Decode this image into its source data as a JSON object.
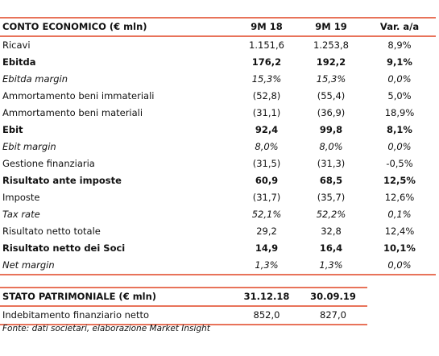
{
  "income_table": {
    "header": [
      "CONTO ECONOMICO (€ mln)",
      "9M 18",
      "9M 19",
      "Var. a/a"
    ],
    "rows": [
      [
        "Ricavi",
        "1.151,6",
        "1.253,8",
        "8,9%"
      ],
      [
        "Ebitda",
        "176,2",
        "192,2",
        "9,1%"
      ],
      [
        "Ebitda margin",
        "15,3%",
        "15,3%",
        "0,0%"
      ],
      [
        "Ammortamento beni immateriali",
        "(52,8)",
        "(55,4)",
        "5,0%"
      ],
      [
        "Ammortamento beni materiali",
        "(31,1)",
        "(36,9)",
        "18,9%"
      ],
      [
        "Ebit",
        "92,4",
        "99,8",
        "8,1%"
      ],
      [
        "Ebit margin",
        "8,0%",
        "8,0%",
        "0,0%"
      ],
      [
        "Gestione finanziaria",
        "(31,5)",
        "(31,3)",
        "-0,5%"
      ],
      [
        "Risultato ante imposte",
        "60,9",
        "68,5",
        "12,5%"
      ],
      [
        "Imposte",
        "(31,7)",
        "(35,7)",
        "12,6%"
      ],
      [
        "Tax rate",
        "52,1%",
        "52,2%",
        "0,1%"
      ],
      [
        "Risultato netto totale",
        "29,2",
        "32,8",
        "12,4%"
      ],
      [
        "Risultato netto dei Soci",
        "14,9",
        "16,4",
        "10,1%"
      ],
      [
        "Net margin",
        "1,3%",
        "1,3%",
        "0,0%"
      ]
    ]
  },
  "balance_table": {
    "header": [
      "STATO PATRIMONIALE (€ mln)",
      "31.12.18",
      "30.09.19"
    ],
    "rows": [
      [
        "Indebitamento finanziario netto",
        "852,0",
        "827,0"
      ]
    ]
  },
  "source": "Fonte: dati societari, elaborazione Market Insight"
}
